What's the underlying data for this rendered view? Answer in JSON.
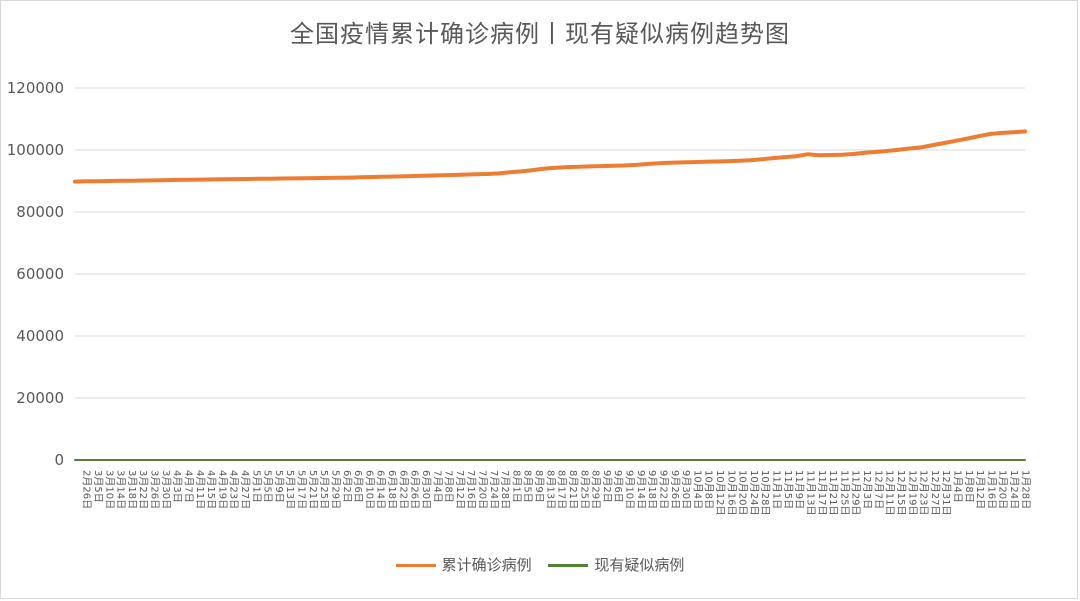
{
  "chart_data": {
    "type": "line",
    "title": "全国疫情累计确诊病例丨现有疑似病例趋势图",
    "ylim": [
      0,
      120000
    ],
    "yticks": [
      "0",
      "20000",
      "40000",
      "60000",
      "80000",
      "100000",
      "120000"
    ],
    "grid": true,
    "legend_position": "bottom",
    "x_tick_labels": [
      "2月26日",
      "3月5日",
      "3月10日",
      "3月14日",
      "3月18日",
      "3月22日",
      "3月26日",
      "3月30日",
      "4月3日",
      "4月7日",
      "4月11日",
      "4月15日",
      "4月19日",
      "4月23日",
      "4月27日",
      "5月1日",
      "5月5日",
      "5月9日",
      "5月13日",
      "5月17日",
      "5月21日",
      "5月25日",
      "5月29日",
      "6月2日",
      "6月6日",
      "6月10日",
      "6月14日",
      "6月18日",
      "6月22日",
      "6月26日",
      "6月30日",
      "7月4日",
      "7月8日",
      "7月12日",
      "7月16日",
      "7月20日",
      "7月24日",
      "7月28日",
      "8月1日",
      "8月5日",
      "8月9日",
      "8月13日",
      "8月17日",
      "8月21日",
      "8月25日",
      "8月29日",
      "9月2日",
      "9月6日",
      "9月10日",
      "9月14日",
      "9月18日",
      "9月22日",
      "9月26日",
      "9月30日",
      "10月4日",
      "10月8日",
      "10月12日",
      "10月16日",
      "10月20日",
      "10月24日",
      "10月28日",
      "11月1日",
      "11月5日",
      "11月9日",
      "11月13日",
      "11月17日",
      "11月21日",
      "11月25日",
      "11月29日",
      "12月3日",
      "12月7日",
      "12月11日",
      "12月15日",
      "12月19日",
      "12月23日",
      "12月27日",
      "12月31日",
      "1月4日",
      "1月8日",
      "1月12日",
      "1月16日",
      "1月20日",
      "1月24日",
      "1月28日"
    ],
    "series": [
      {
        "name": "累计确诊病例",
        "color": "#ED7D31",
        "values": [
          89800,
          89900,
          89950,
          90000,
          90050,
          90100,
          90150,
          90200,
          90300,
          90350,
          90400,
          90450,
          90500,
          90550,
          90600,
          90650,
          90700,
          90750,
          90800,
          90850,
          90900,
          90950,
          91000,
          91050,
          91100,
          91200,
          91300,
          91400,
          91450,
          91550,
          91650,
          91750,
          91850,
          91950,
          92050,
          92150,
          92250,
          92450,
          92800,
          93100,
          93500,
          94000,
          94300,
          94500,
          94600,
          94700,
          94800,
          94900,
          95000,
          95200,
          95500,
          95700,
          95900,
          96000,
          96100,
          96200,
          96300,
          96400,
          96500,
          96700,
          97000,
          97400,
          97700,
          98000,
          98600,
          98300,
          98400,
          98500,
          98700,
          99100,
          99400,
          99700,
          100100,
          100500,
          100900,
          101600,
          102300,
          103000,
          103700,
          104500,
          105200,
          105500,
          105700,
          106000
        ]
      },
      {
        "name": "现有疑似病例",
        "color": "#548235",
        "values": [
          5,
          5,
          5,
          5,
          5,
          5,
          5,
          5,
          5,
          5,
          5,
          5,
          5,
          5,
          5,
          5,
          5,
          5,
          5,
          5,
          5,
          5,
          5,
          5,
          5,
          5,
          5,
          5,
          5,
          5,
          5,
          5,
          5,
          5,
          5,
          5,
          5,
          5,
          5,
          5,
          5,
          5,
          5,
          5,
          5,
          5,
          5,
          5,
          5,
          5,
          5,
          5,
          5,
          5,
          5,
          5,
          5,
          5,
          5,
          5,
          5,
          5,
          5,
          5,
          5,
          5,
          5,
          5,
          5,
          5,
          5,
          5,
          5,
          5,
          5,
          5,
          5,
          5,
          5,
          5,
          5,
          5,
          5,
          5
        ]
      }
    ]
  }
}
